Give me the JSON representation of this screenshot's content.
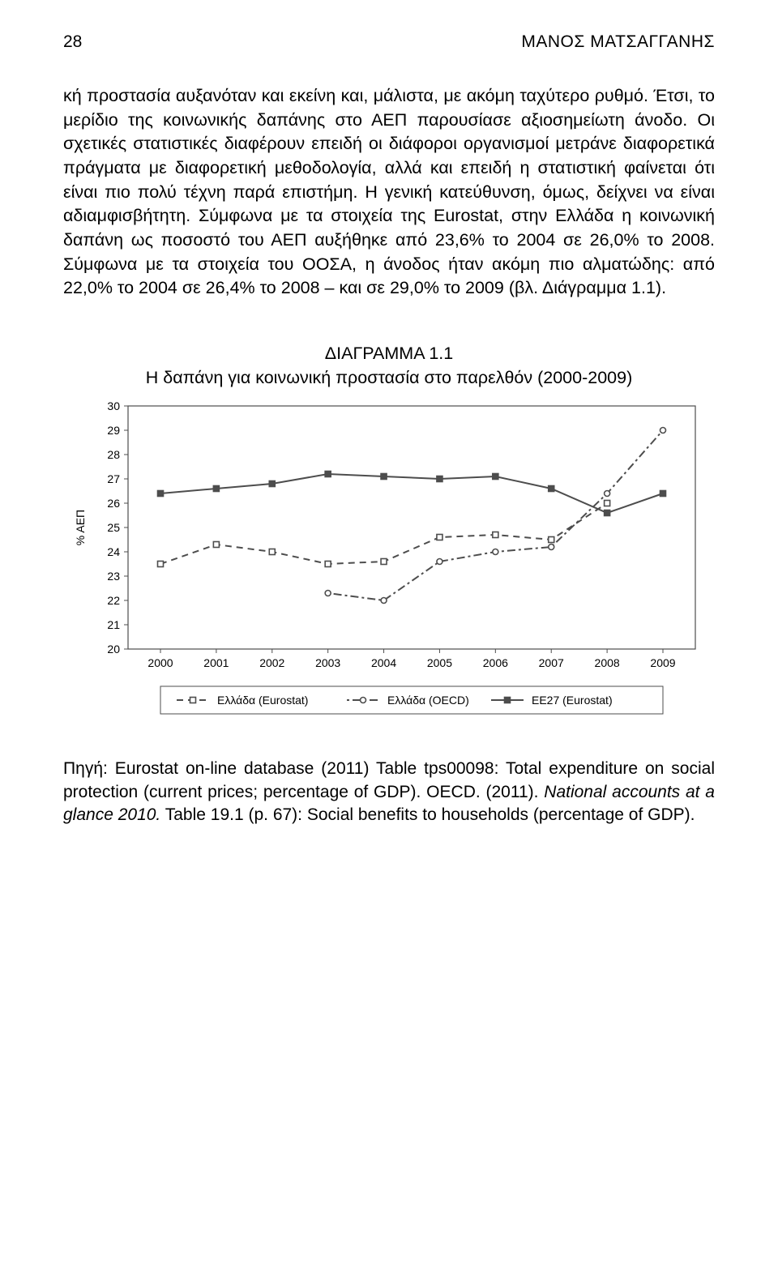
{
  "header": {
    "page_number": "28",
    "author": "ΜΑΝΟΣ ΜΑΤΣΑΓΓΑΝΗΣ"
  },
  "paragraph": "κή προστασία αυξανόταν και εκείνη και, μάλιστα, με ακόμη ταχύτερο ρυθμό. Έτσι, το μερίδιο της κοινωνικής δαπάνης στο ΑΕΠ παρουσίασε αξιοσημείωτη άνοδο. Οι σχετικές στατιστικές διαφέρουν επειδή οι διάφοροι οργανισμοί μετράνε διαφορετικά πράγματα με διαφορετική μεθοδολογία, αλλά και επειδή η στατιστική φαίνεται ότι είναι πιο πολύ τέχνη παρά επιστήμη. Η γενική κατεύθυνση, όμως, δείχνει να είναι αδιαμφισβήτητη. Σύμφωνα με τα στοιχεία της Eurostat, στην Ελλάδα η κοινωνική δαπάνη ως ποσοστό του ΑΕΠ αυξήθηκε από 23,6% το 2004 σε 26,0% το 2008. Σύμφωνα με τα στοιχεία του ΟΟΣΑ, η άνοδος ήταν ακόμη πιο αλματώδης: από 22,0% το 2004 σε 26,4% το 2008 – και σε 29,0% το 2009 (βλ. Διάγραμμα 1.1).",
  "diagram": {
    "label": "ΔΙΑΓΡΑΜΜΑ 1.1",
    "subtitle": "Η δαπάνη για κοινωνική προστασία στο παρελθόν (2000-2009)"
  },
  "chart": {
    "type": "line",
    "background_color": "#ffffff",
    "axis_color": "#4d4d4d",
    "grid_color": "#e0e0e0",
    "border_color": "#4d4d4d",
    "legend_border_color": "#4d4d4d",
    "font_family": "Arial",
    "axis_title_fontsize": 14,
    "tick_fontsize": 14,
    "legend_fontsize": 14,
    "ylabel": "% ΑΕΠ",
    "ylim": [
      20,
      30
    ],
    "ytick_step": 1,
    "x_categories": [
      "2000",
      "2001",
      "2002",
      "2003",
      "2004",
      "2005",
      "2006",
      "2007",
      "2008",
      "2009"
    ],
    "series": [
      {
        "name": "Ελλάδα (Eurostat)",
        "color": "#4d4d4d",
        "line_style": "dashed",
        "marker": "square-open",
        "marker_fill": "#ffffff",
        "marker_size": 7,
        "line_width": 2,
        "values": [
          23.5,
          24.3,
          24.0,
          23.5,
          23.6,
          24.6,
          24.7,
          24.5,
          26.0,
          null
        ]
      },
      {
        "name": "Ελλάδα (OECD)",
        "color": "#4d4d4d",
        "line_style": "dotted-dash",
        "marker": "circle-open",
        "marker_fill": "#ffffff",
        "marker_size": 7,
        "line_width": 2,
        "values": [
          null,
          null,
          null,
          22.3,
          22.0,
          23.6,
          24.0,
          24.2,
          26.4,
          29.0
        ]
      },
      {
        "name": "ΕΕ27 (Eurostat)",
        "color": "#4d4d4d",
        "line_style": "solid",
        "marker": "square-solid",
        "marker_fill": "#4d4d4d",
        "marker_size": 7,
        "line_width": 2,
        "values": [
          26.4,
          26.6,
          26.8,
          27.2,
          27.1,
          27.0,
          27.1,
          26.6,
          25.6,
          26.4
        ]
      }
    ]
  },
  "source": {
    "prefix": "Πηγή: Eurostat on-line database (2011) Table tps00098: Total expenditure on social protection (current prices; percentage of GDP). OECD. (2011). ",
    "italic": "National accounts at a glance 2010.",
    "suffix": " Table 19.1 (p. 67): Social benefits to households (percentage of GDP)."
  }
}
